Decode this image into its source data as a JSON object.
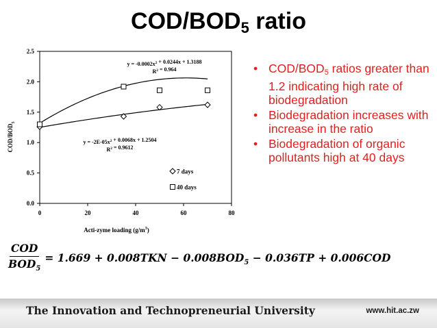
{
  "slide": {
    "title_main": "COD/BOD",
    "title_sub": "5",
    "title_tail": " ratio"
  },
  "bullets": [
    {
      "pre": "COD/BOD",
      "sub": "5",
      "post": " ratios greater than 1.2 indicating high rate of biodegradation"
    },
    {
      "pre": "Biodegradation increases with increase in the ratio",
      "sub": "",
      "post": ""
    },
    {
      "pre": "Biodegradation of organic pollutants high at 40 days",
      "sub": "",
      "post": ""
    }
  ],
  "bullet_glyph": "•",
  "equation": {
    "numerator": "COD",
    "denominator": "BOD",
    "denominator_sub": "5",
    "rhs_part1": "= 1.669 + 0.008TKN − 0.008BOD",
    "rhs_sub": "5",
    "rhs_part2": " − 0.036TP + 0.006COD"
  },
  "footer": {
    "institution": "The Innovation and Technopreneurial University",
    "url": "www.hit.ac.zw"
  },
  "colors": {
    "bullet_text": "#e02020",
    "title": "#000000"
  },
  "chart_data": {
    "type": "scatter",
    "xlabel": "Acti-zyme loading (g/m3)",
    "ylabel_main": "COD/BOD",
    "ylabel_sub": "5",
    "xlim": [
      0,
      80
    ],
    "ylim": [
      0,
      2.5
    ],
    "xticks": [
      0,
      20,
      40,
      60,
      80
    ],
    "yticks": [
      0.0,
      0.5,
      1.0,
      1.5,
      2.0,
      2.5
    ],
    "ytick_labels": [
      "0.0",
      "0.5",
      "1.0",
      "1.5",
      "2.0",
      "2.5"
    ],
    "grid": false,
    "legend_position": "lower-right",
    "series": [
      {
        "name": "7 days",
        "marker": "diamond",
        "x": [
          0,
          35,
          50,
          70
        ],
        "y": [
          1.26,
          1.43,
          1.58,
          1.62
        ],
        "trendline": {
          "a": -2e-05,
          "b": 0.0068,
          "c": 1.2504
        },
        "equation_text": "y = -2E-05x2 + 0.0068x + 1.2504",
        "r2_text": "R2 = 0.9612"
      },
      {
        "name": "40 days",
        "marker": "square",
        "x": [
          0,
          35,
          50,
          70
        ],
        "y": [
          1.3,
          1.92,
          1.86,
          1.86
        ],
        "trendline": {
          "a": -0.0002,
          "b": 0.0244,
          "c": 1.3188
        },
        "equation_text": "y = -0.0002x2 + 0.0244x + 1.3188",
        "r2_text": "R2 = 0.964"
      }
    ]
  }
}
